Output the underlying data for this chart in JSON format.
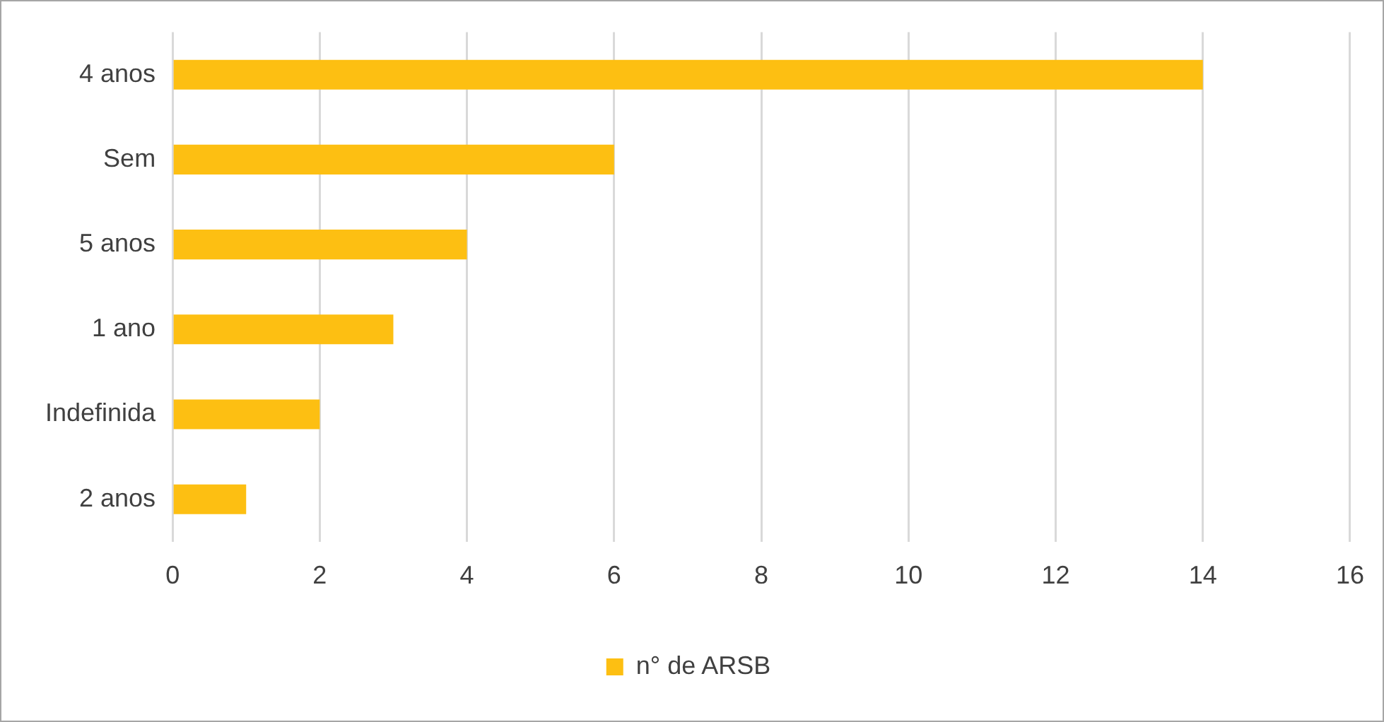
{
  "chart_data": {
    "type": "bar",
    "orientation": "horizontal",
    "categories": [
      "4 anos",
      "Sem",
      "5 anos",
      "1 ano",
      "Indefinida",
      "2 anos"
    ],
    "series": [
      {
        "name": "n° de ARSB",
        "color": "#fdbf12",
        "values": [
          14,
          6,
          4,
          3,
          2,
          1
        ]
      }
    ],
    "xlim": [
      0,
      16
    ],
    "xticks": [
      0,
      2,
      4,
      6,
      8,
      10,
      12,
      14,
      16
    ],
    "grid": "x",
    "legend": "bottom"
  }
}
